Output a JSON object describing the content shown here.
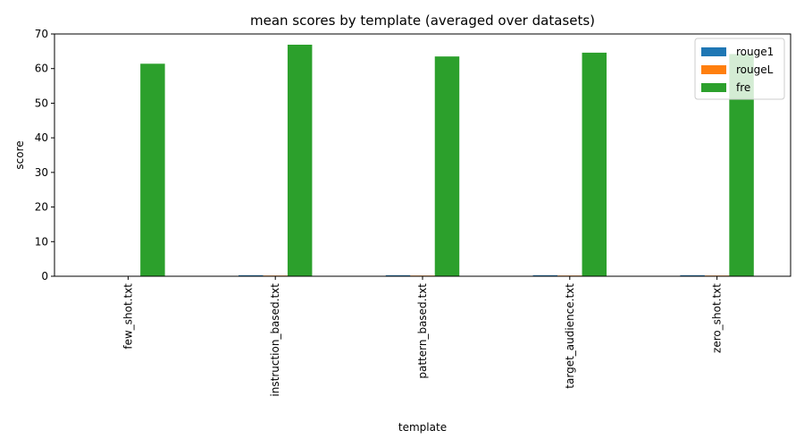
{
  "chart_data": {
    "type": "bar",
    "title": "mean scores by template (averaged over datasets)",
    "xlabel": "template",
    "ylabel": "score",
    "categories": [
      "few_shot.txt",
      "instruction_based.txt",
      "pattern_based.txt",
      "target_audience.txt",
      "zero_shot.txt"
    ],
    "series": [
      {
        "name": "rouge1",
        "color": "#1f77b4",
        "values": [
          0.1,
          0.3,
          0.3,
          0.3,
          0.3
        ]
      },
      {
        "name": "rougeL",
        "color": "#ff7f0e",
        "values": [
          0.1,
          0.2,
          0.2,
          0.2,
          0.2
        ]
      },
      {
        "name": "fre",
        "color": "#2ca02c",
        "values": [
          61.4,
          66.9,
          63.5,
          64.6,
          64.2
        ]
      }
    ],
    "ylim": [
      0,
      70
    ],
    "yticks": [
      0,
      10,
      20,
      30,
      40,
      50,
      60,
      70
    ],
    "grid": false,
    "legend_position": "top-right"
  }
}
